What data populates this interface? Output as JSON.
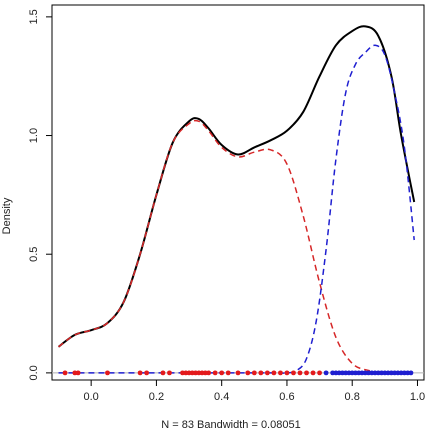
{
  "chart_data": {
    "type": "line",
    "title": "",
    "xlabel": "N = 83   Bandwidth = 0.08051",
    "ylabel": "Density",
    "xlim": [
      -0.12,
      1.02
    ],
    "ylim": [
      -0.03,
      1.55
    ],
    "xticks": [
      0.0,
      0.2,
      0.4,
      0.6,
      0.8,
      1.0
    ],
    "xtick_labels": [
      "0.0",
      "0.2",
      "0.4",
      "0.6",
      "0.8",
      "1.0"
    ],
    "yticks": [
      0.0,
      0.5,
      1.0,
      1.5
    ],
    "ytick_labels": [
      "0.0",
      "0.5",
      "1.0",
      "1.5"
    ],
    "grid": false,
    "legend": "none",
    "series": [
      {
        "color": "#000000",
        "style": "solid",
        "x": [
          -0.1,
          -0.05,
          0.0,
          0.05,
          0.1,
          0.15,
          0.2,
          0.25,
          0.3,
          0.33,
          0.36,
          0.4,
          0.45,
          0.5,
          0.55,
          0.6,
          0.65,
          0.7,
          0.75,
          0.8,
          0.84,
          0.88,
          0.92,
          0.95,
          0.99
        ],
        "y": [
          0.11,
          0.16,
          0.18,
          0.21,
          0.3,
          0.5,
          0.75,
          0.97,
          1.06,
          1.07,
          1.03,
          0.96,
          0.92,
          0.95,
          0.98,
          1.02,
          1.1,
          1.25,
          1.38,
          1.44,
          1.46,
          1.42,
          1.25,
          1.0,
          0.72
        ]
      },
      {
        "color": "#d62728",
        "style": "dashed",
        "x": [
          -0.1,
          -0.05,
          0.0,
          0.05,
          0.1,
          0.15,
          0.2,
          0.25,
          0.3,
          0.33,
          0.36,
          0.4,
          0.45,
          0.5,
          0.55,
          0.6,
          0.65,
          0.7,
          0.75,
          0.8,
          0.85,
          0.9
        ],
        "y": [
          0.11,
          0.16,
          0.18,
          0.21,
          0.3,
          0.5,
          0.75,
          0.97,
          1.05,
          1.06,
          1.02,
          0.95,
          0.91,
          0.93,
          0.94,
          0.88,
          0.66,
          0.38,
          0.15,
          0.04,
          0.01,
          0.0
        ]
      },
      {
        "color": "#1f1fd0",
        "style": "dashed",
        "x": [
          -0.1,
          0.0,
          0.2,
          0.4,
          0.55,
          0.6,
          0.63,
          0.66,
          0.69,
          0.72,
          0.75,
          0.78,
          0.81,
          0.84,
          0.87,
          0.9,
          0.93,
          0.96,
          0.99
        ],
        "y": [
          0.0,
          0.0,
          0.0,
          0.0,
          0.0,
          0.0,
          0.01,
          0.06,
          0.22,
          0.52,
          0.9,
          1.18,
          1.3,
          1.35,
          1.38,
          1.34,
          1.18,
          0.95,
          0.56
        ]
      }
    ],
    "rug": {
      "y": 0.0,
      "red_x": [
        -0.08,
        -0.05,
        -0.04,
        0.05,
        0.15,
        0.17,
        0.22,
        0.24,
        0.28,
        0.29,
        0.3,
        0.31,
        0.32,
        0.33,
        0.34,
        0.35,
        0.36,
        0.38,
        0.4,
        0.42,
        0.45,
        0.48,
        0.5,
        0.52,
        0.54,
        0.56,
        0.58,
        0.6,
        0.62,
        0.64,
        0.66,
        0.68,
        0.7
      ],
      "blue_x": [
        0.72,
        0.74,
        0.75,
        0.76,
        0.77,
        0.78,
        0.79,
        0.8,
        0.81,
        0.82,
        0.83,
        0.84,
        0.85,
        0.86,
        0.87,
        0.88,
        0.89,
        0.9,
        0.91,
        0.92,
        0.93,
        0.94,
        0.95,
        0.96,
        0.97,
        0.98
      ],
      "red_color": "#e31a1c",
      "blue_color": "#1f1fd0",
      "baseline_color": "#b0b0b0"
    }
  }
}
